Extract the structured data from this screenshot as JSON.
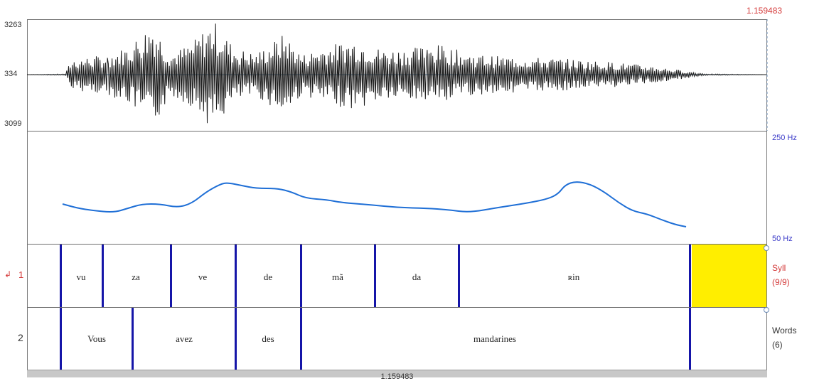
{
  "cursor_time": "1.159483",
  "waveform": {
    "amp_max_label": "3263",
    "amp_zero_label": "334",
    "amp_min_label": "3099"
  },
  "pitch": {
    "max_label": "250 Hz",
    "min_label": "50 Hz"
  },
  "tiers": [
    {
      "number": "1",
      "name": "Syll",
      "count": "(9/9)",
      "intervals": [
        "vu",
        "za",
        "ve",
        "de",
        "mã",
        "da",
        "ʀin"
      ]
    },
    {
      "number": "2",
      "name": "Words",
      "count": "(6)",
      "intervals": [
        "Vous",
        "avez",
        "des",
        "mandarines"
      ]
    }
  ],
  "time_bar_label": "1.159483",
  "colors": {
    "boundary": "#1515a8",
    "pitch_curve": "#1f6fd6",
    "selection": "#ffee00",
    "tier_marker": "#d43a3a"
  }
}
